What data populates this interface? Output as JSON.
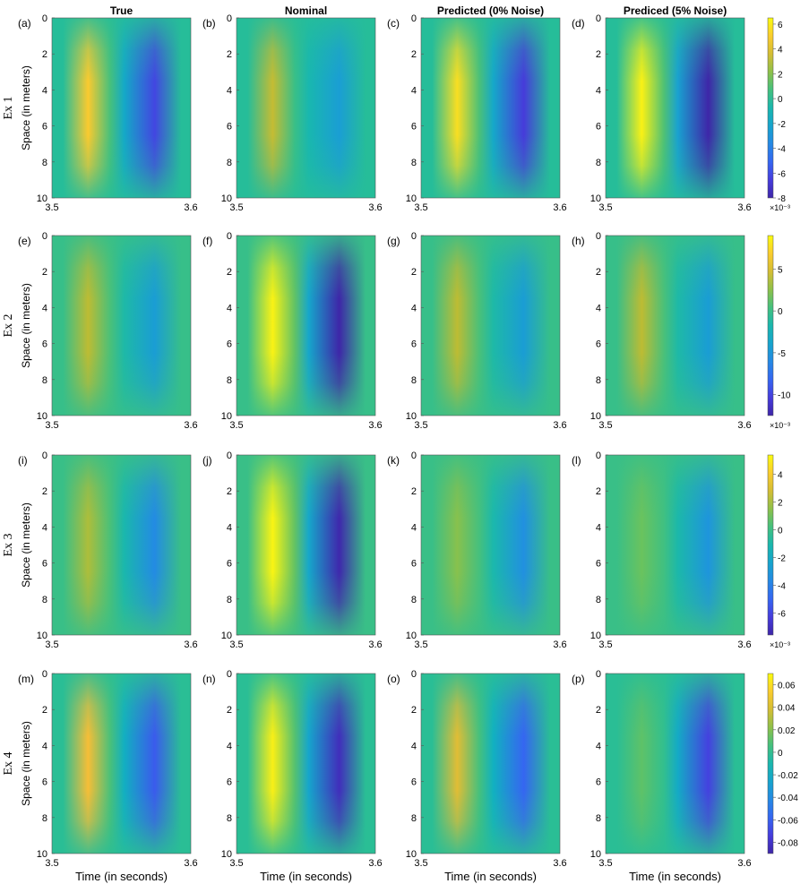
{
  "chart_data": {
    "type": "heatmap",
    "col_titles": [
      "True",
      "Nominal",
      "Predicted (0% Noise)",
      "Prediced (5% Noise)"
    ],
    "row_labels": [
      "Ex 1",
      "Ex 2",
      "Ex 3",
      "Ex 4"
    ],
    "ylabel": "Space (in meters)",
    "xlabel": "Time (in seconds)",
    "x_ticks": [
      "3.5",
      "3.6"
    ],
    "xlim": [
      3.5,
      3.6
    ],
    "y_ticks": [
      "0",
      "2",
      "4",
      "6",
      "8",
      "10"
    ],
    "ylim": [
      0,
      10
    ],
    "colormap": "parula",
    "rows": [
      {
        "panels": [
          {
            "label": "(a)",
            "peak_pos": 5.0,
            "peak_neg": -6.2
          },
          {
            "label": "(b)",
            "peak_pos": 3.2,
            "peak_neg": -2.6
          },
          {
            "label": "(c)",
            "peak_pos": 5.6,
            "peak_neg": -6.6
          },
          {
            "label": "(d)",
            "peak_pos": 6.2,
            "peak_neg": -8.0
          }
        ],
        "colorbar": {
          "min": -8,
          "max": 6.5,
          "ticks": [
            "6",
            "4",
            "2",
            "0",
            "-2",
            "-4",
            "-6",
            "-8"
          ],
          "tick_values": [
            6,
            4,
            2,
            0,
            -2,
            -4,
            -6,
            -8
          ],
          "multiplier": "×10⁻³"
        }
      },
      {
        "panels": [
          {
            "label": "(e)",
            "peak_pos": 3.8,
            "peak_neg": -4.5
          },
          {
            "label": "(f)",
            "peak_pos": 8.6,
            "peak_neg": -12.5
          },
          {
            "label": "(g)",
            "peak_pos": 3.8,
            "peak_neg": -4.5
          },
          {
            "label": "(h)",
            "peak_pos": 3.8,
            "peak_neg": -4.5
          }
        ],
        "colorbar": {
          "min": -12.5,
          "max": 9,
          "ticks": [
            "5",
            "0",
            "-5",
            "-10"
          ],
          "tick_values": [
            5,
            0,
            -5,
            -10
          ],
          "multiplier": "×10⁻³"
        }
      },
      {
        "panels": [
          {
            "label": "(i)",
            "peak_pos": 2.0,
            "peak_neg": -3.6
          },
          {
            "label": "(j)",
            "peak_pos": 5.2,
            "peak_neg": -7.5
          },
          {
            "label": "(k)",
            "peak_pos": 1.4,
            "peak_neg": -3.4
          },
          {
            "label": "(l)",
            "peak_pos": 0.9,
            "peak_neg": -3.2
          }
        ],
        "colorbar": {
          "min": -7.6,
          "max": 5.4,
          "ticks": [
            "4",
            "2",
            "0",
            "-2",
            "-4",
            "-6"
          ],
          "tick_values": [
            4,
            2,
            0,
            -2,
            -4,
            -6
          ],
          "multiplier": "×10⁻³"
        }
      },
      {
        "panels": [
          {
            "label": "(m)",
            "peak_pos": 0.048,
            "peak_neg": -0.062
          },
          {
            "label": "(n)",
            "peak_pos": 0.066,
            "peak_neg": -0.084
          },
          {
            "label": "(o)",
            "peak_pos": 0.042,
            "peak_neg": -0.058
          },
          {
            "label": "(p)",
            "peak_pos": 0.012,
            "peak_neg": -0.072
          }
        ],
        "colorbar": {
          "min": -0.09,
          "max": 0.07,
          "ticks": [
            "0.06",
            "0.04",
            "0.02",
            "0",
            "-0.02",
            "-0.04",
            "-0.06",
            "-0.08"
          ],
          "tick_values": [
            0.06,
            0.04,
            0.02,
            0,
            -0.02,
            -0.04,
            -0.06,
            -0.08
          ],
          "multiplier": ""
        }
      }
    ]
  }
}
